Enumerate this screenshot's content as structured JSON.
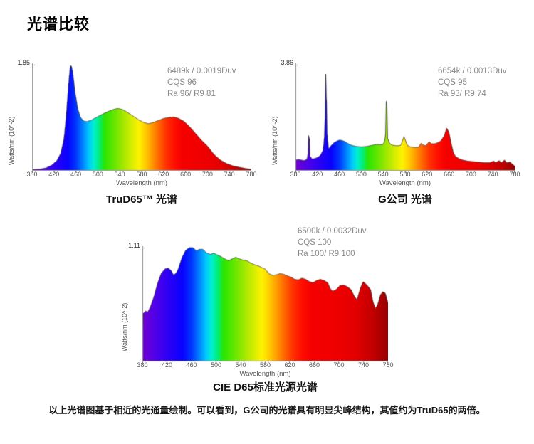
{
  "page": {
    "title": "光谱比较",
    "caption": "以上光谱图基于相近的光通量绘制。可以看到，G公司的光谱具有明显尖峰结构，其值约为TruD65的两倍。",
    "background": "#ffffff"
  },
  "style": {
    "axis_color": "#9a9a9a",
    "tick_label_color": "#555555",
    "annotation_color": "#8a8a8a",
    "outline_color": "#2a2a2a",
    "spectrum_gradient": [
      [
        380,
        "#7000D0"
      ],
      [
        400,
        "#5000E8"
      ],
      [
        425,
        "#2800F5"
      ],
      [
        445,
        "#0802FF"
      ],
      [
        460,
        "#0038FF"
      ],
      [
        472,
        "#0080FF"
      ],
      [
        483,
        "#00C6FF"
      ],
      [
        492,
        "#00EFD4"
      ],
      [
        502,
        "#00EE7E"
      ],
      [
        512,
        "#2AE600"
      ],
      [
        530,
        "#66E600"
      ],
      [
        548,
        "#A8E800"
      ],
      [
        562,
        "#D6EE00"
      ],
      [
        575,
        "#FFF200"
      ],
      [
        588,
        "#FFC800"
      ],
      [
        600,
        "#FF9600"
      ],
      [
        612,
        "#FF6400"
      ],
      [
        625,
        "#FF3200"
      ],
      [
        640,
        "#FF0F00"
      ],
      [
        655,
        "#F50000"
      ],
      [
        700,
        "#EE0000"
      ],
      [
        730,
        "#E00000"
      ],
      [
        755,
        "#C30000"
      ],
      [
        780,
        "#990000"
      ]
    ]
  },
  "chart_data": [
    {
      "id": "trud65",
      "type": "area",
      "title": "TruD65™ 光谱",
      "xlabel": "Wavelength (nm)",
      "ylabel": "Watts/nm (10^-2)",
      "y_max_label": "1.85",
      "y_max": 1.85,
      "xlim": [
        380,
        780
      ],
      "x_ticks": [
        380,
        420,
        460,
        500,
        540,
        580,
        620,
        660,
        700,
        740,
        780
      ],
      "annotation": [
        "6489k / 0.0019Duv",
        "CQS 96",
        "Ra 96/ R9 81"
      ],
      "profile_note": "pairs of [wavelength nm, intensity relative to y_max]",
      "profile": [
        [
          380,
          0.005
        ],
        [
          395,
          0.01
        ],
        [
          405,
          0.02
        ],
        [
          415,
          0.045
        ],
        [
          425,
          0.09
        ],
        [
          432,
          0.16
        ],
        [
          438,
          0.3
        ],
        [
          442,
          0.52
        ],
        [
          446,
          0.8
        ],
        [
          449,
          0.97
        ],
        [
          451,
          1.0
        ],
        [
          454,
          0.92
        ],
        [
          458,
          0.74
        ],
        [
          463,
          0.58
        ],
        [
          468,
          0.5
        ],
        [
          474,
          0.465
        ],
        [
          480,
          0.46
        ],
        [
          488,
          0.475
        ],
        [
          497,
          0.5
        ],
        [
          508,
          0.53
        ],
        [
          518,
          0.555
        ],
        [
          528,
          0.575
        ],
        [
          536,
          0.585
        ],
        [
          545,
          0.575
        ],
        [
          555,
          0.545
        ],
        [
          565,
          0.51
        ],
        [
          575,
          0.475
        ],
        [
          585,
          0.45
        ],
        [
          592,
          0.44
        ],
        [
          600,
          0.45
        ],
        [
          610,
          0.47
        ],
        [
          620,
          0.49
        ],
        [
          630,
          0.5
        ],
        [
          638,
          0.505
        ],
        [
          648,
          0.49
        ],
        [
          658,
          0.46
        ],
        [
          668,
          0.41
        ],
        [
          678,
          0.35
        ],
        [
          690,
          0.28
        ],
        [
          700,
          0.23
        ],
        [
          712,
          0.15
        ],
        [
          724,
          0.095
        ],
        [
          736,
          0.06
        ],
        [
          748,
          0.038
        ],
        [
          760,
          0.025
        ],
        [
          770,
          0.015
        ],
        [
          780,
          0.008
        ]
      ]
    },
    {
      "id": "company-g",
      "type": "area",
      "title": "G公司 光谱",
      "xlabel": "Wavelength (nm)",
      "ylabel": "Watts/nm (10^-2)",
      "y_max_label": "3.86",
      "y_max": 3.86,
      "xlim": [
        380,
        780
      ],
      "x_ticks": [
        380,
        420,
        460,
        500,
        540,
        580,
        620,
        660,
        700,
        740,
        780
      ],
      "annotation": [
        "6654k / 0.0013Duv",
        "CQS 95",
        "Ra 93/ R9 74"
      ],
      "profile_note": "pairs of [wavelength nm, intensity relative to y_max]",
      "profile": [
        [
          380,
          0.095
        ],
        [
          385,
          0.1
        ],
        [
          390,
          0.095
        ],
        [
          395,
          0.09
        ],
        [
          400,
          0.1
        ],
        [
          402,
          0.13
        ],
        [
          404,
          0.4
        ],
        [
          406,
          0.13
        ],
        [
          410,
          0.105
        ],
        [
          415,
          0.11
        ],
        [
          420,
          0.12
        ],
        [
          425,
          0.14
        ],
        [
          430,
          0.19
        ],
        [
          433,
          0.35
        ],
        [
          435,
          1.0
        ],
        [
          437,
          0.35
        ],
        [
          440,
          0.2
        ],
        [
          445,
          0.235
        ],
        [
          450,
          0.26
        ],
        [
          455,
          0.275
        ],
        [
          460,
          0.285
        ],
        [
          465,
          0.28
        ],
        [
          470,
          0.27
        ],
        [
          476,
          0.25
        ],
        [
          482,
          0.235
        ],
        [
          490,
          0.225
        ],
        [
          500,
          0.22
        ],
        [
          510,
          0.225
        ],
        [
          520,
          0.235
        ],
        [
          528,
          0.245
        ],
        [
          535,
          0.24
        ],
        [
          540,
          0.245
        ],
        [
          544,
          0.3
        ],
        [
          546,
          0.78
        ],
        [
          548,
          0.3
        ],
        [
          552,
          0.25
        ],
        [
          558,
          0.235
        ],
        [
          565,
          0.23
        ],
        [
          572,
          0.235
        ],
        [
          576,
          0.29
        ],
        [
          578,
          0.32
        ],
        [
          580,
          0.29
        ],
        [
          584,
          0.235
        ],
        [
          590,
          0.22
        ],
        [
          598,
          0.215
        ],
        [
          605,
          0.22
        ],
        [
          609,
          0.255
        ],
        [
          612,
          0.24
        ],
        [
          618,
          0.23
        ],
        [
          624,
          0.27
        ],
        [
          628,
          0.25
        ],
        [
          634,
          0.25
        ],
        [
          640,
          0.26
        ],
        [
          646,
          0.28
        ],
        [
          652,
          0.33
        ],
        [
          656,
          0.4
        ],
        [
          660,
          0.36
        ],
        [
          664,
          0.26
        ],
        [
          668,
          0.17
        ],
        [
          672,
          0.13
        ],
        [
          678,
          0.11
        ],
        [
          685,
          0.095
        ],
        [
          695,
          0.085
        ],
        [
          705,
          0.08
        ],
        [
          715,
          0.075
        ],
        [
          725,
          0.07
        ],
        [
          735,
          0.07
        ],
        [
          742,
          0.085
        ],
        [
          746,
          0.07
        ],
        [
          752,
          0.09
        ],
        [
          756,
          0.07
        ],
        [
          762,
          0.095
        ],
        [
          766,
          0.07
        ],
        [
          772,
          0.075
        ],
        [
          780,
          0.04
        ]
      ]
    },
    {
      "id": "cie-d65",
      "type": "area",
      "title": "CIE D65标准光源光谱",
      "xlabel": "Wavelength (nm)",
      "ylabel": "Watts/nm (10^-2)",
      "y_max_label": "1.11",
      "y_max": 1.11,
      "xlim": [
        380,
        780
      ],
      "x_ticks": [
        380,
        420,
        460,
        500,
        540,
        580,
        620,
        660,
        700,
        740,
        780
      ],
      "annotation": [
        "6500k / 0.0032Duv",
        "CQS 100",
        "Ra 100/ R9 100"
      ],
      "profile_note": "pairs of [wavelength nm, intensity relative to y_max]",
      "profile": [
        [
          380,
          0.3
        ],
        [
          381,
          0.42
        ],
        [
          385,
          0.44
        ],
        [
          388,
          0.43
        ],
        [
          392,
          0.47
        ],
        [
          398,
          0.56
        ],
        [
          404,
          0.68
        ],
        [
          410,
          0.77
        ],
        [
          416,
          0.81
        ],
        [
          421,
          0.82
        ],
        [
          426,
          0.8
        ],
        [
          430,
          0.76
        ],
        [
          434,
          0.77
        ],
        [
          438,
          0.81
        ],
        [
          444,
          0.91
        ],
        [
          450,
          0.975
        ],
        [
          456,
          1.0
        ],
        [
          462,
          1.0
        ],
        [
          468,
          0.97
        ],
        [
          472,
          0.985
        ],
        [
          478,
          0.985
        ],
        [
          484,
          0.955
        ],
        [
          490,
          0.94
        ],
        [
          496,
          0.95
        ],
        [
          502,
          0.935
        ],
        [
          508,
          0.92
        ],
        [
          514,
          0.9
        ],
        [
          520,
          0.885
        ],
        [
          526,
          0.9
        ],
        [
          532,
          0.915
        ],
        [
          538,
          0.9
        ],
        [
          544,
          0.89
        ],
        [
          550,
          0.885
        ],
        [
          556,
          0.865
        ],
        [
          562,
          0.85
        ],
        [
          568,
          0.84
        ],
        [
          574,
          0.825
        ],
        [
          580,
          0.81
        ],
        [
          586,
          0.77
        ],
        [
          592,
          0.755
        ],
        [
          598,
          0.76
        ],
        [
          604,
          0.77
        ],
        [
          610,
          0.765
        ],
        [
          616,
          0.75
        ],
        [
          622,
          0.74
        ],
        [
          628,
          0.72
        ],
        [
          634,
          0.715
        ],
        [
          640,
          0.73
        ],
        [
          646,
          0.72
        ],
        [
          652,
          0.7
        ],
        [
          658,
          0.69
        ],
        [
          664,
          0.71
        ],
        [
          670,
          0.72
        ],
        [
          676,
          0.71
        ],
        [
          682,
          0.69
        ],
        [
          686,
          0.64
        ],
        [
          690,
          0.615
        ],
        [
          696,
          0.63
        ],
        [
          702,
          0.665
        ],
        [
          708,
          0.67
        ],
        [
          714,
          0.655
        ],
        [
          720,
          0.63
        ],
        [
          726,
          0.565
        ],
        [
          730,
          0.54
        ],
        [
          736,
          0.65
        ],
        [
          740,
          0.7
        ],
        [
          746,
          0.67
        ],
        [
          752,
          0.63
        ],
        [
          756,
          0.52
        ],
        [
          760,
          0.46
        ],
        [
          764,
          0.5
        ],
        [
          768,
          0.58
        ],
        [
          772,
          0.61
        ],
        [
          776,
          0.6
        ],
        [
          780,
          0.52
        ]
      ]
    }
  ]
}
